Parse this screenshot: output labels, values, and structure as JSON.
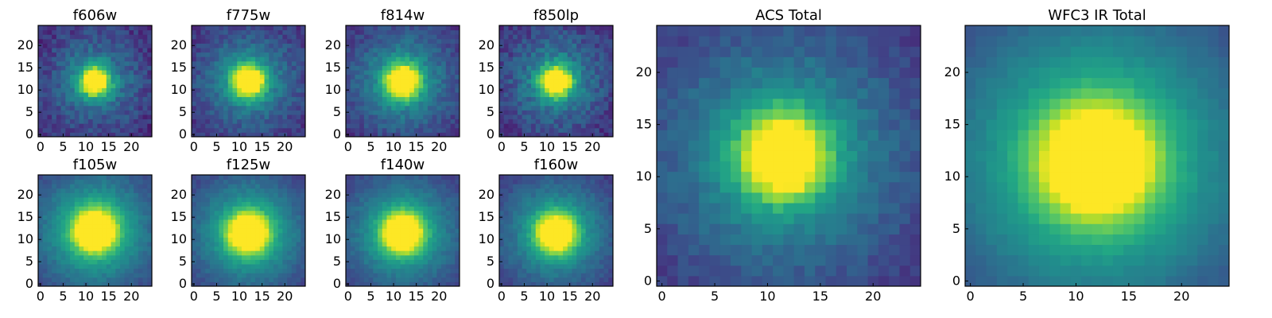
{
  "figure": {
    "colormap": "viridis",
    "colors": {
      "low": "#440154",
      "mid": "#21918c",
      "high": "#fde725",
      "frame": "#000000",
      "background": "#ffffff"
    }
  },
  "chart_data": [
    {
      "type": "heatmap",
      "title": "f606w",
      "xlim": [
        0,
        25
      ],
      "ylim": [
        0,
        25
      ],
      "xticks": [
        0,
        5,
        10,
        15,
        20
      ],
      "yticks": [
        0,
        5,
        10,
        15,
        20
      ],
      "center": [
        12,
        12
      ],
      "peak": 1.0,
      "width": 2.2,
      "halo": 0.35,
      "noise": 0.18,
      "background": 0.12
    },
    {
      "type": "heatmap",
      "title": "f775w",
      "xlim": [
        0,
        25
      ],
      "ylim": [
        0,
        25
      ],
      "xticks": [
        0,
        5,
        10,
        15,
        20
      ],
      "yticks": [
        0,
        5,
        10,
        15,
        20
      ],
      "center": [
        12,
        12
      ],
      "peak": 1.0,
      "width": 2.4,
      "halo": 0.4,
      "noise": 0.15,
      "background": 0.12
    },
    {
      "type": "heatmap",
      "title": "f814w",
      "xlim": [
        0,
        25
      ],
      "ylim": [
        0,
        25
      ],
      "xticks": [
        0,
        5,
        10,
        15,
        20
      ],
      "yticks": [
        0,
        5,
        10,
        15,
        20
      ],
      "center": [
        12,
        12
      ],
      "peak": 1.0,
      "width": 2.5,
      "halo": 0.42,
      "noise": 0.14,
      "background": 0.12
    },
    {
      "type": "heatmap",
      "title": "f850lp",
      "xlim": [
        0,
        25
      ],
      "ylim": [
        0,
        25
      ],
      "xticks": [
        0,
        5,
        10,
        15,
        20
      ],
      "yticks": [
        0,
        5,
        10,
        15,
        20
      ],
      "center": [
        12,
        12
      ],
      "peak": 1.0,
      "width": 2.3,
      "halo": 0.38,
      "noise": 0.18,
      "background": 0.12
    },
    {
      "type": "heatmap",
      "title": "f105w",
      "xlim": [
        0,
        25
      ],
      "ylim": [
        0,
        25
      ],
      "xticks": [
        0,
        5,
        10,
        15,
        20
      ],
      "yticks": [
        0,
        5,
        10,
        15,
        20
      ],
      "center": [
        12,
        12
      ],
      "peak": 1.0,
      "width": 3.1,
      "halo": 0.55,
      "noise": 0.08,
      "background": 0.1
    },
    {
      "type": "heatmap",
      "title": "f125w",
      "xlim": [
        0,
        25
      ],
      "ylim": [
        0,
        25
      ],
      "xticks": [
        0,
        5,
        10,
        15,
        20
      ],
      "yticks": [
        0,
        5,
        10,
        15,
        20
      ],
      "center": [
        12,
        11.5
      ],
      "peak": 1.0,
      "width": 3.0,
      "halo": 0.52,
      "noise": 0.08,
      "background": 0.1
    },
    {
      "type": "heatmap",
      "title": "f140w",
      "xlim": [
        0,
        25
      ],
      "ylim": [
        0,
        25
      ],
      "xticks": [
        0,
        5,
        10,
        15,
        20
      ],
      "yticks": [
        0,
        5,
        10,
        15,
        20
      ],
      "center": [
        12,
        11.5
      ],
      "peak": 1.0,
      "width": 3.0,
      "halo": 0.5,
      "noise": 0.08,
      "background": 0.1
    },
    {
      "type": "heatmap",
      "title": "f160w",
      "xlim": [
        0,
        25
      ],
      "ylim": [
        0,
        25
      ],
      "xticks": [
        0,
        5,
        10,
        15,
        20
      ],
      "yticks": [
        0,
        5,
        10,
        15,
        20
      ],
      "center": [
        12,
        11.5
      ],
      "peak": 1.0,
      "width": 2.9,
      "halo": 0.48,
      "noise": 0.09,
      "background": 0.1
    },
    {
      "type": "heatmap",
      "title": "ACS Total",
      "xlim": [
        0,
        25
      ],
      "ylim": [
        0,
        25
      ],
      "xticks": [
        0,
        5,
        10,
        15,
        20
      ],
      "yticks": [
        0,
        5,
        10,
        15,
        20
      ],
      "center": [
        11.5,
        12
      ],
      "peak": 1.0,
      "width": 2.6,
      "halo": 0.45,
      "noise": 0.1,
      "background": 0.12
    },
    {
      "type": "heatmap",
      "title": "WFC3 IR Total",
      "xlim": [
        0,
        25
      ],
      "ylim": [
        0,
        25
      ],
      "xticks": [
        0,
        5,
        10,
        15,
        20
      ],
      "yticks": [
        0,
        5,
        10,
        15,
        20
      ],
      "center": [
        12,
        11.5
      ],
      "peak": 1.0,
      "width": 3.4,
      "halo": 0.6,
      "noise": 0.04,
      "background": 0.1
    }
  ]
}
